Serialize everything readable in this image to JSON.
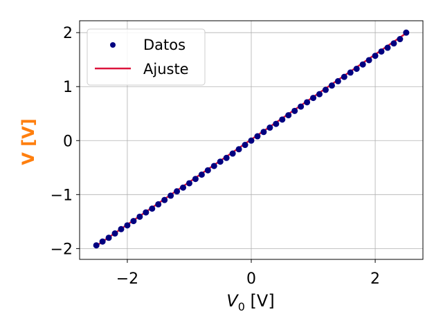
{
  "chart_data": {
    "type": "scatter",
    "xlabel": "V0 [V]",
    "xlabel_main": "V",
    "xlabel_sub": "0",
    "xlabel_unit": " [V]",
    "ylabel": "V [V]",
    "ylabel_color": "#ff7f0e",
    "xlim": [
      -2.77,
      2.77
    ],
    "ylim": [
      -2.2,
      2.22
    ],
    "xticks": [
      -2,
      0,
      2
    ],
    "xtick_labels": [
      "−2",
      "0",
      "2"
    ],
    "yticks": [
      -2,
      -1,
      0,
      1,
      2
    ],
    "ytick_labels": [
      "−2",
      "−1",
      "0",
      "1",
      "2"
    ],
    "grid": true,
    "legend_position": "top-left",
    "series": [
      {
        "name": "Datos",
        "kind": "scatter",
        "color": "#000080",
        "x": [
          -2.5,
          -2.4,
          -2.3,
          -2.2,
          -2.1,
          -2.0,
          -1.9,
          -1.8,
          -1.7,
          -1.6,
          -1.5,
          -1.4,
          -1.3,
          -1.2,
          -1.1,
          -1.0,
          -0.9,
          -0.8,
          -0.7,
          -0.6,
          -0.5,
          -0.4,
          -0.3,
          -0.2,
          -0.1,
          0.0,
          0.1,
          0.2,
          0.3,
          0.4,
          0.5,
          0.6,
          0.7,
          0.8,
          0.9,
          1.0,
          1.1,
          1.2,
          1.3,
          1.4,
          1.5,
          1.6,
          1.7,
          1.8,
          1.9,
          2.0,
          2.1,
          2.2,
          2.3,
          2.4,
          2.5
        ],
        "y": [
          -1.94,
          -1.87,
          -1.8,
          -1.72,
          -1.64,
          -1.57,
          -1.49,
          -1.41,
          -1.33,
          -1.26,
          -1.18,
          -1.1,
          -1.02,
          -0.94,
          -0.87,
          -0.79,
          -0.71,
          -0.63,
          -0.55,
          -0.47,
          -0.39,
          -0.32,
          -0.24,
          -0.16,
          -0.08,
          0.0,
          0.08,
          0.16,
          0.24,
          0.31,
          0.39,
          0.47,
          0.55,
          0.63,
          0.71,
          0.79,
          0.86,
          0.94,
          1.02,
          1.1,
          1.18,
          1.26,
          1.33,
          1.41,
          1.49,
          1.57,
          1.65,
          1.72,
          1.8,
          1.88,
          2.0
        ]
      },
      {
        "name": "Ajuste",
        "kind": "line",
        "color": "#dc143c",
        "x": [
          -2.5,
          2.5
        ],
        "y": [
          -1.95,
          1.99
        ]
      }
    ]
  }
}
